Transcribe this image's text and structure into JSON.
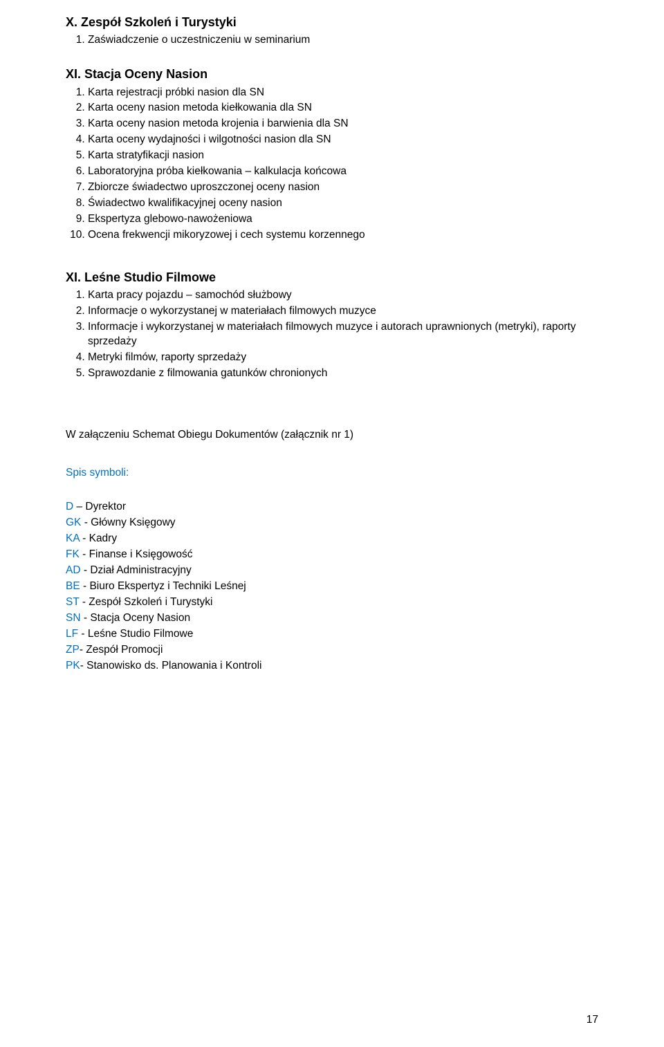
{
  "sectionX": {
    "heading": "X. Zespół Szkoleń i Turystyki",
    "items": [
      "Zaświadczenie o uczestniczeniu w seminarium"
    ]
  },
  "sectionXI": {
    "heading": "XI. Stacja Oceny Nasion",
    "items": [
      "Karta rejestracji próbki nasion dla SN",
      "Karta oceny nasion metoda kiełkowania dla SN",
      "Karta oceny nasion metoda krojenia i barwienia dla SN",
      "Karta oceny wydajności i wilgotności nasion dla SN",
      "Karta stratyfikacji nasion",
      "Laboratoryjna próba kiełkowania – kalkulacja końcowa",
      "Zbiorcze świadectwo uproszczonej oceny nasion",
      "Świadectwo kwalifikacyjnej oceny nasion",
      "Ekspertyza glebowo-nawożeniowa",
      "Ocena frekwencji mikoryzowej i cech systemu korzennego"
    ]
  },
  "sectionXI2": {
    "heading": "XI. Leśne Studio Filmowe",
    "items": [
      "Karta pracy pojazdu – samochód służbowy",
      "Informacje o wykorzystanej w materiałach filmowych muzyce",
      "Informacje i wykorzystanej w materiałach filmowych muzyce i autorach uprawnionych (metryki), raporty sprzedaży",
      "Metryki filmów, raporty sprzedaży",
      "Sprawozdanie z filmowania gatunków chronionych"
    ]
  },
  "attachmentLine": "W załączeniu Schemat Obiegu Dokumentów (załącznik nr 1)",
  "spisHeading": "Spis symboli:",
  "symbols": [
    {
      "code": "D",
      "label": " – Dyrektor"
    },
    {
      "code": "GK",
      "label": " - Główny Księgowy"
    },
    {
      "code": "KA",
      "label": " - Kadry"
    },
    {
      "code": "FK",
      "label": " - Finanse i Księgowość"
    },
    {
      "code": "AD",
      "label": " - Dział Administracyjny"
    },
    {
      "code": "BE",
      "label": " - Biuro Ekspertyz i Techniki Leśnej"
    },
    {
      "code": "ST",
      "label": " - Zespół Szkoleń i Turystyki"
    },
    {
      "code": "SN",
      "label": " - Stacja Oceny Nasion"
    },
    {
      "code": "LF",
      "label": " - Leśne Studio Filmowe"
    },
    {
      "code": "ZP",
      "label": "- Zespół Promocji"
    },
    {
      "code": "PK",
      "label": "- Stanowisko ds. Planowania i Kontroli"
    }
  ],
  "pageNumber": "17",
  "colors": {
    "text": "#000000",
    "blue": "#0070c0",
    "background": "#ffffff"
  }
}
